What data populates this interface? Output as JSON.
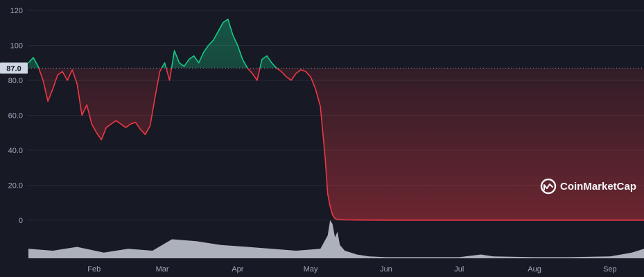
{
  "colors": {
    "background": "#171924",
    "grid": "#262a36",
    "up": "#16c784",
    "down": "#ea3943",
    "volume": "#c8ccd6",
    "reference": "#8a8f9e",
    "reference_label_bg": "#cfd6e4",
    "axis_text": "#a1a7bb"
  },
  "watermark": {
    "text": "CoinMarketCap",
    "icon": "coinmarketcap-logo-icon"
  },
  "reference": {
    "value": 87.0,
    "label": "87.0"
  },
  "chart_data": {
    "type": "line",
    "title": "",
    "xlabel": "",
    "ylabel": "",
    "ylim": [
      0,
      120
    ],
    "y_ticks": [
      0,
      20,
      40,
      60,
      80,
      100,
      120
    ],
    "y_tick_labels": [
      "0",
      "20.0",
      "40.0",
      "60.0",
      "80.0",
      "100",
      "120"
    ],
    "x_range": [
      "2022-01-05",
      "2022-09-15"
    ],
    "x_ticks": [
      "2022-02-01",
      "2022-03-01",
      "2022-04-01",
      "2022-05-01",
      "2022-06-01",
      "2022-07-01",
      "2022-08-01",
      "2022-09-01"
    ],
    "x_tick_labels": [
      "Feb",
      "Mar",
      "Apr",
      "May",
      "Jun",
      "Jul",
      "Aug",
      "Sep"
    ],
    "baseline": 87.0,
    "grid": true,
    "legend": "none",
    "series": [
      {
        "x": [
          "2022-01-05",
          "2022-01-07",
          "2022-01-09",
          "2022-01-11",
          "2022-01-13",
          "2022-01-15",
          "2022-01-17",
          "2022-01-19",
          "2022-01-21",
          "2022-01-23",
          "2022-01-25",
          "2022-01-27",
          "2022-01-29",
          "2022-01-31",
          "2022-02-02",
          "2022-02-04",
          "2022-02-06",
          "2022-02-08",
          "2022-02-10",
          "2022-02-12",
          "2022-02-14",
          "2022-02-16",
          "2022-02-18",
          "2022-02-20",
          "2022-02-22",
          "2022-02-24",
          "2022-02-26",
          "2022-02-28",
          "2022-03-02",
          "2022-03-04",
          "2022-03-06",
          "2022-03-08",
          "2022-03-10",
          "2022-03-12",
          "2022-03-14",
          "2022-03-16",
          "2022-03-18",
          "2022-03-20",
          "2022-03-22",
          "2022-03-24",
          "2022-03-26",
          "2022-03-28",
          "2022-03-30",
          "2022-04-01",
          "2022-04-03",
          "2022-04-05",
          "2022-04-07",
          "2022-04-09",
          "2022-04-11",
          "2022-04-13",
          "2022-04-15",
          "2022-04-17",
          "2022-04-19",
          "2022-04-21",
          "2022-04-23",
          "2022-04-25",
          "2022-04-27",
          "2022-04-29",
          "2022-05-01",
          "2022-05-03",
          "2022-05-05",
          "2022-05-07",
          "2022-05-08",
          "2022-05-09",
          "2022-05-10",
          "2022-05-11",
          "2022-05-12",
          "2022-05-13",
          "2022-05-15",
          "2022-05-20",
          "2022-06-01",
          "2022-07-01",
          "2022-08-01",
          "2022-09-01",
          "2022-09-15"
        ],
        "values": [
          90,
          93,
          88,
          80,
          68,
          75,
          83,
          85,
          80,
          86,
          78,
          60,
          66,
          55,
          50,
          46,
          53,
          55,
          57,
          55,
          53,
          55,
          56,
          52,
          49,
          54,
          70,
          85,
          90,
          80,
          97,
          90,
          88,
          92,
          94,
          90,
          96,
          100,
          103,
          108,
          113,
          115,
          106,
          100,
          92,
          87,
          84,
          80,
          92,
          94,
          90,
          87,
          85,
          82,
          80,
          84,
          86,
          85,
          82,
          75,
          65,
          35,
          15,
          8,
          3,
          1,
          0.5,
          0.3,
          0.2,
          0.1,
          0.05,
          0.02,
          0.01,
          0.01,
          0.01
        ]
      }
    ],
    "volume": {
      "x": [
        "2022-01-05",
        "2022-01-15",
        "2022-01-25",
        "2022-02-05",
        "2022-02-15",
        "2022-02-25",
        "2022-03-05",
        "2022-03-15",
        "2022-03-25",
        "2022-04-05",
        "2022-04-15",
        "2022-04-25",
        "2022-05-05",
        "2022-05-08",
        "2022-05-09",
        "2022-05-10",
        "2022-05-11",
        "2022-05-12",
        "2022-05-13",
        "2022-05-15",
        "2022-05-20",
        "2022-05-25",
        "2022-06-01",
        "2022-06-15",
        "2022-07-01",
        "2022-07-10",
        "2022-07-15",
        "2022-08-01",
        "2022-08-15",
        "2022-09-01",
        "2022-09-10",
        "2022-09-15"
      ],
      "values": [
        0.25,
        0.2,
        0.3,
        0.15,
        0.25,
        0.2,
        0.5,
        0.45,
        0.35,
        0.3,
        0.25,
        0.2,
        0.25,
        0.6,
        1.0,
        0.9,
        0.55,
        0.7,
        0.35,
        0.2,
        0.1,
        0.05,
        0.03,
        0.03,
        0.03,
        0.1,
        0.05,
        0.03,
        0.03,
        0.05,
        0.15,
        0.25
      ]
    }
  }
}
